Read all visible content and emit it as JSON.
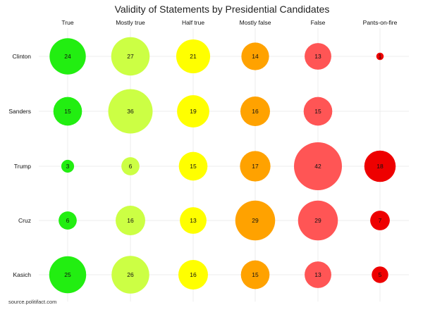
{
  "chart_data": {
    "type": "bubble",
    "title": "Validity of Statements by Presidential Candidates",
    "columns": [
      "True",
      "Mostly true",
      "Half true",
      "Mostly false",
      "False",
      "Pants-on-fire"
    ],
    "rows": [
      "Clinton",
      "Sanders",
      "Trump",
      "Cruz",
      "Kasich"
    ],
    "values": [
      [
        24,
        27,
        21,
        14,
        13,
        1
      ],
      [
        15,
        36,
        19,
        16,
        15,
        null
      ],
      [
        3,
        6,
        15,
        17,
        42,
        18
      ],
      [
        6,
        16,
        13,
        29,
        29,
        7
      ],
      [
        25,
        26,
        16,
        15,
        13,
        5
      ]
    ],
    "colors": [
      "#22ee11",
      "#ccff44",
      "#ffff00",
      "#ffa200",
      "#ff5555",
      "#ee0000"
    ],
    "grid": true,
    "source": "source.politifact.com"
  }
}
